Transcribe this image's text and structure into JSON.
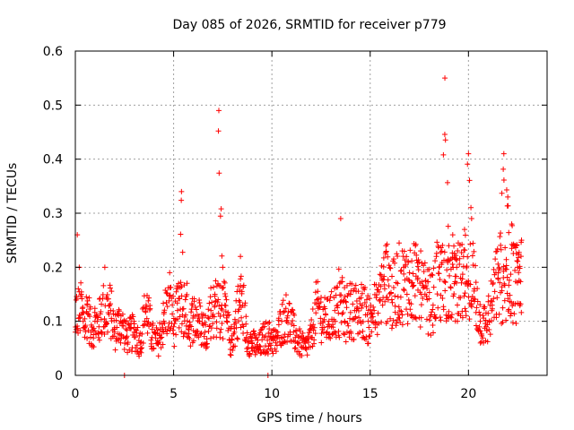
{
  "chart_data": {
    "type": "scatter",
    "title": "Day 085 of 2026, SRMTID for receiver p779",
    "xlabel": "GPS time / hours",
    "ylabel": "SRMTID / TECUs",
    "xlim": [
      0,
      24
    ],
    "ylim": [
      0,
      0.6
    ],
    "xticks": [
      0,
      5,
      10,
      15,
      20
    ],
    "yticks": [
      0,
      0.1,
      0.2,
      0.3,
      0.4,
      0.5,
      0.6
    ],
    "xtick_labels": [
      "0",
      "5",
      "10",
      "15",
      "20"
    ],
    "ytick_labels": [
      "0",
      "0.1",
      "0.2",
      "0.3",
      "0.4",
      "0.5",
      "0.6"
    ],
    "grid": true,
    "marker": "+",
    "color": "#ff0000",
    "series": [
      {
        "name": "SRMTID",
        "x": [
          0.0,
          0.1,
          0.2,
          0.3,
          0.4,
          0.5,
          0.6,
          0.8,
          1.0,
          1.2,
          1.5,
          1.8,
          2.0,
          2.3,
          2.6,
          3.0,
          3.3,
          3.6,
          3.9,
          4.2,
          4.5,
          4.8,
          5.0,
          5.2,
          5.4,
          5.6,
          5.8,
          6.0,
          6.3,
          6.6,
          6.9,
          7.1,
          7.3,
          7.5,
          7.7,
          7.9,
          8.1,
          8.4,
          8.7,
          9.0,
          9.3,
          9.6,
          9.9,
          10.2,
          10.5,
          10.8,
          11.1,
          11.4,
          11.7,
          12.0,
          12.3,
          12.6,
          12.9,
          13.2,
          13.5,
          13.7,
          14.0,
          14.3,
          14.6,
          14.9,
          15.2,
          15.5,
          15.8,
          16.1,
          16.4,
          16.7,
          17.0,
          17.3,
          17.6,
          17.9,
          18.2,
          18.5,
          18.8,
          19.0,
          19.2,
          19.4,
          19.6,
          19.8,
          20.0,
          20.3,
          20.6,
          20.9,
          21.2,
          21.5,
          21.8,
          22.0,
          22.2,
          22.5,
          22.7,
          2.5,
          9.8
        ],
        "y": [
          0.08,
          0.26,
          0.2,
          0.15,
          0.1,
          0.09,
          0.13,
          0.08,
          0.1,
          0.09,
          0.2,
          0.12,
          0.08,
          0.1,
          0.07,
          0.08,
          0.06,
          0.13,
          0.07,
          0.06,
          0.1,
          0.19,
          0.09,
          0.12,
          0.34,
          0.14,
          0.09,
          0.11,
          0.1,
          0.08,
          0.12,
          0.15,
          0.49,
          0.2,
          0.1,
          0.06,
          0.08,
          0.22,
          0.07,
          0.06,
          0.05,
          0.07,
          0.07,
          0.06,
          0.1,
          0.11,
          0.08,
          0.06,
          0.05,
          0.07,
          0.14,
          0.1,
          0.1,
          0.12,
          0.29,
          0.1,
          0.15,
          0.12,
          0.13,
          0.1,
          0.12,
          0.14,
          0.24,
          0.14,
          0.17,
          0.2,
          0.19,
          0.24,
          0.15,
          0.14,
          0.13,
          0.2,
          0.55,
          0.24,
          0.26,
          0.2,
          0.18,
          0.27,
          0.41,
          0.16,
          0.1,
          0.09,
          0.13,
          0.18,
          0.41,
          0.33,
          0.28,
          0.2,
          0.25,
          0.0,
          0.0
        ]
      }
    ]
  }
}
